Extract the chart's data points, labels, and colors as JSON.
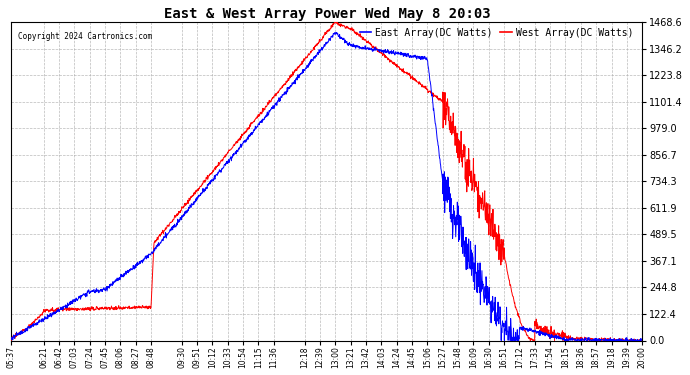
{
  "title": "East & West Array Power Wed May 8 20:03",
  "copyright": "Copyright 2024 Cartronics.com",
  "legend_east": "East Array(DC Watts)",
  "legend_west": "West Array(DC Watts)",
  "east_color": "#0000FF",
  "west_color": "#FF0000",
  "bg_color": "#FFFFFF",
  "grid_color": "#AAAAAA",
  "yticks": [
    0.0,
    122.4,
    244.8,
    367.1,
    489.5,
    611.9,
    734.3,
    856.7,
    979.0,
    1101.4,
    1223.8,
    1346.2,
    1468.6
  ],
  "ymax": 1468.6,
  "xtick_labels": [
    "05:37",
    "06:21",
    "06:42",
    "07:03",
    "07:24",
    "07:45",
    "08:06",
    "08:27",
    "08:48",
    "09:30",
    "09:51",
    "10:12",
    "10:33",
    "10:54",
    "11:15",
    "11:36",
    "12:18",
    "12:39",
    "13:00",
    "13:21",
    "13:42",
    "14:03",
    "14:24",
    "14:45",
    "15:06",
    "15:27",
    "15:48",
    "16:09",
    "16:30",
    "16:51",
    "17:12",
    "17:33",
    "17:54",
    "18:15",
    "18:36",
    "18:57",
    "19:18",
    "19:39",
    "20:00"
  ]
}
